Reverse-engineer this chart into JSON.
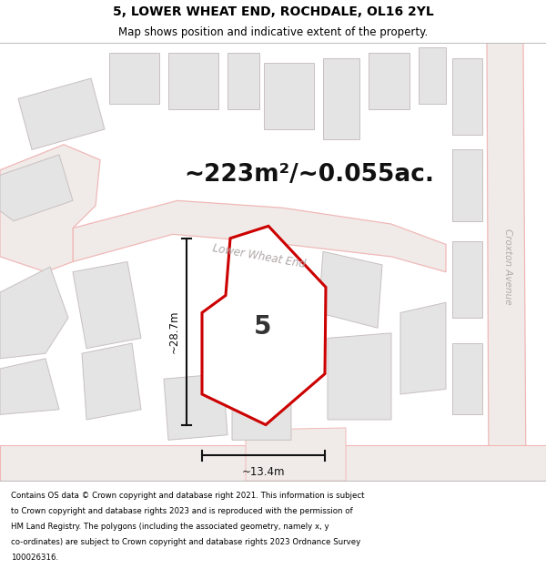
{
  "title": "5, LOWER WHEAT END, ROCHDALE, OL16 2YL",
  "subtitle": "Map shows position and indicative extent of the property.",
  "area_text": "~223m²/~0.055ac.",
  "width_label": "~13.4m",
  "height_label": "~28.7m",
  "property_number": "5",
  "road_label": "Lower Wheat End",
  "road2_label": "Croxton Avenue",
  "footer_text": "Contains OS data © Crown copyright and database right 2021. This information is subject to Crown copyright and database rights 2023 and is reproduced with the permission of HM Land Registry. The polygons (including the associated geometry, namely x, y co-ordinates) are subject to Crown copyright and database rights 2023 Ordnance Survey 100026316.",
  "title_fontsize": 10,
  "subtitle_fontsize": 8.5,
  "area_fontsize": 19,
  "map_bg": "#f9f6f6",
  "building_fill": "#e4e4e4",
  "building_edge": "#c8c0c0",
  "road_fill": "#f0eaea",
  "road_edge": "#f0b8b8",
  "plot_color": "#cc0000",
  "dim_color": "#111111",
  "footer_fontsize": 6.2
}
